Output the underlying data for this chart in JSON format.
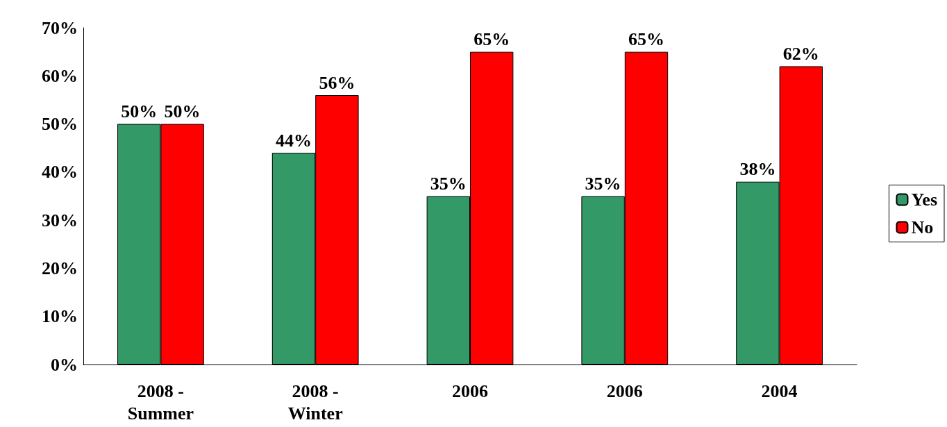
{
  "chart_data": {
    "type": "bar",
    "categories": [
      "2008 - Summer",
      "2008 - Winter",
      "2006",
      "2006",
      "2004"
    ],
    "series": [
      {
        "name": "Yes",
        "color": "#339966",
        "values": [
          50,
          44,
          35,
          35,
          38
        ],
        "value_labels": [
          "50%",
          "44%",
          "35%",
          "35%",
          "38%"
        ]
      },
      {
        "name": "No",
        "color": "#ff0000",
        "values": [
          50,
          56,
          65,
          65,
          62
        ],
        "value_labels": [
          "50%",
          "56%",
          "65%",
          "65%",
          "62%"
        ]
      }
    ],
    "ylim": [
      0,
      70
    ],
    "yticks": [
      {
        "value": 0,
        "label": "0%"
      },
      {
        "value": 10,
        "label": "10%"
      },
      {
        "value": 20,
        "label": "20%"
      },
      {
        "value": 30,
        "label": "30%"
      },
      {
        "value": 40,
        "label": "40%"
      },
      {
        "value": 50,
        "label": "50%"
      },
      {
        "value": 60,
        "label": "60%"
      },
      {
        "value": 70,
        "label": "70%"
      }
    ],
    "grid": false,
    "legend": "right"
  }
}
